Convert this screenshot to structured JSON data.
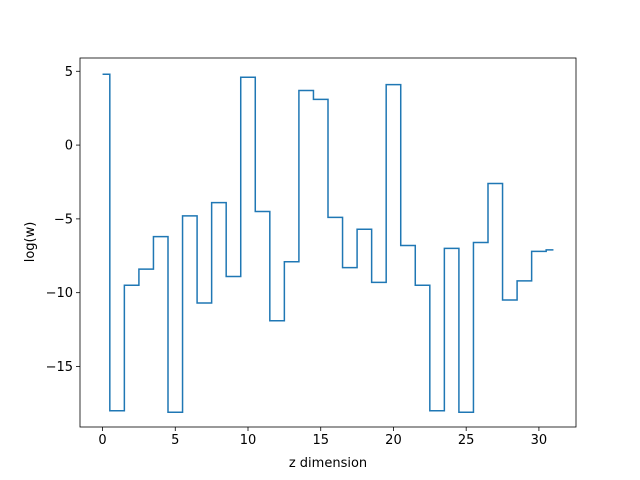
{
  "chart_data": {
    "type": "line",
    "drawstyle": "steps-mid",
    "title": "",
    "xlabel": "z dimension",
    "ylabel": "log(w)",
    "xlim": [
      -1.55,
      32.55
    ],
    "ylim": [
      -19.1,
      5.9
    ],
    "xticks": [
      0,
      5,
      10,
      15,
      20,
      25,
      30
    ],
    "xtick_labels": [
      "0",
      "5",
      "10",
      "15",
      "20",
      "25",
      "30"
    ],
    "yticks": [
      5,
      0,
      -5,
      -10,
      -15
    ],
    "ytick_labels": [
      "5",
      "0",
      "−5",
      "−10",
      "−15"
    ],
    "grid": false,
    "legend": "none",
    "line_color": "#1f77b4",
    "series": [
      {
        "x": [
          0,
          1,
          2,
          3,
          4,
          5,
          6,
          7,
          8,
          9,
          10,
          11,
          12,
          13,
          14,
          15,
          16,
          17,
          18,
          19,
          20,
          21,
          22,
          23,
          24,
          25,
          26,
          27,
          28,
          29,
          30,
          31
        ],
        "values": [
          4.8,
          -18.0,
          -9.5,
          -8.4,
          -6.2,
          -18.1,
          -4.8,
          -10.7,
          -3.9,
          -8.9,
          4.6,
          -4.5,
          -11.9,
          -7.9,
          3.7,
          3.1,
          -4.9,
          -8.3,
          -5.7,
          -9.3,
          4.1,
          -6.8,
          -9.5,
          -18.0,
          -7.0,
          -18.1,
          -6.6,
          -2.6,
          -10.5,
          -9.2,
          -7.2,
          -7.1
        ]
      }
    ]
  }
}
